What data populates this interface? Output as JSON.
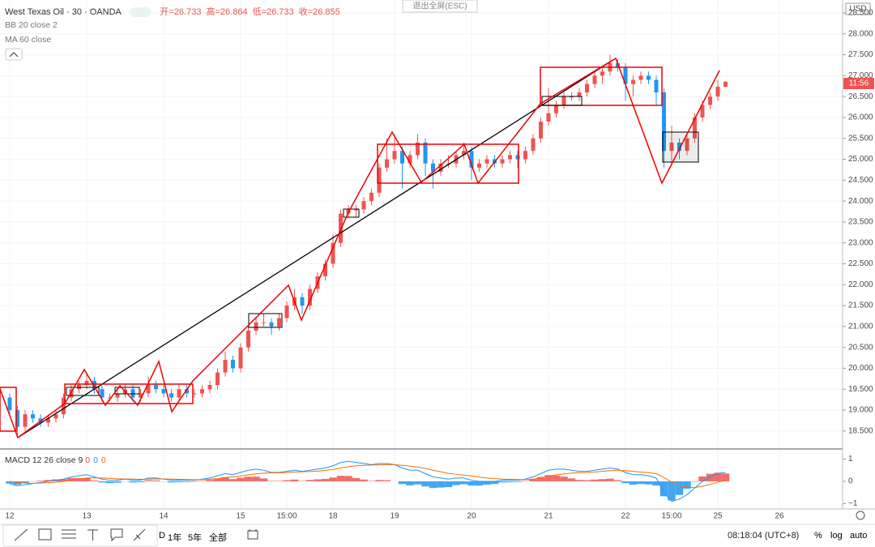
{
  "chart_data": [
    {
      "type": "candlestick",
      "title": "West Texas Oil · 30 · OANDA",
      "ohlc_labels": [
        "开=",
        "高=",
        "低=",
        "收="
      ],
      "indicators": [
        "BB 20 close 2",
        "MA 60 close"
      ],
      "currency": "USD",
      "countdown": "11:56",
      "up_color": "#ef5350",
      "down_color": "#2196f3",
      "grid": true,
      "categories": [
        "12",
        null,
        null,
        null,
        null,
        null,
        null,
        null,
        null,
        null,
        "13",
        null,
        null,
        null,
        null,
        null,
        null,
        null,
        null,
        null,
        "14",
        null,
        null,
        null,
        null,
        null,
        null,
        null,
        null,
        null,
        "15",
        null,
        null,
        null,
        null,
        null,
        "15:00",
        null,
        null,
        null,
        null,
        null,
        "18",
        null,
        null,
        null,
        null,
        null,
        null,
        null,
        "19",
        null,
        null,
        null,
        null,
        null,
        null,
        null,
        null,
        null,
        "20",
        null,
        null,
        null,
        null,
        null,
        null,
        null,
        null,
        null,
        "21",
        null,
        null,
        null,
        null,
        null,
        null,
        null,
        null,
        null,
        "22",
        null,
        null,
        null,
        null,
        null,
        "15:00",
        null,
        null,
        null,
        null,
        null,
        "25",
        null,
        null,
        null,
        null,
        null,
        null,
        null,
        "26"
      ],
      "ohlc": [
        [
          19.3,
          19.4,
          18.9,
          19.0
        ],
        [
          19.0,
          19.1,
          18.4,
          18.6
        ],
        [
          18.6,
          19.0,
          18.5,
          18.9
        ],
        [
          18.9,
          19.0,
          18.7,
          18.8
        ],
        [
          18.8,
          18.9,
          18.6,
          18.7
        ],
        [
          18.7,
          18.9,
          18.6,
          18.8
        ],
        [
          18.8,
          19.0,
          18.7,
          18.9
        ],
        [
          18.9,
          19.4,
          18.8,
          19.3
        ],
        [
          19.3,
          19.6,
          19.2,
          19.5
        ],
        [
          19.5,
          19.7,
          19.4,
          19.6
        ],
        [
          19.6,
          19.9,
          19.5,
          19.7
        ],
        [
          19.7,
          19.8,
          19.4,
          19.5
        ],
        [
          19.5,
          19.6,
          19.2,
          19.3
        ],
        [
          19.3,
          19.4,
          19.2,
          19.3
        ],
        [
          19.3,
          19.5,
          19.2,
          19.4
        ],
        [
          19.4,
          19.6,
          19.3,
          19.5
        ],
        [
          19.5,
          19.6,
          19.2,
          19.3
        ],
        [
          19.3,
          19.5,
          19.2,
          19.4
        ],
        [
          19.4,
          19.8,
          19.3,
          19.6
        ],
        [
          19.6,
          19.7,
          19.4,
          19.5
        ],
        [
          19.5,
          19.6,
          19.3,
          19.4
        ],
        [
          19.4,
          19.5,
          19.2,
          19.3
        ],
        [
          19.3,
          19.6,
          19.2,
          19.5
        ],
        [
          19.5,
          19.6,
          19.3,
          19.4
        ],
        [
          19.4,
          19.5,
          19.3,
          19.4
        ],
        [
          19.4,
          19.6,
          19.3,
          19.5
        ],
        [
          19.5,
          19.7,
          19.4,
          19.6
        ],
        [
          19.6,
          20.0,
          19.5,
          19.9
        ],
        [
          19.9,
          20.4,
          19.8,
          20.2
        ],
        [
          20.2,
          20.3,
          19.9,
          20.0
        ],
        [
          20.0,
          20.6,
          19.9,
          20.5
        ],
        [
          20.5,
          21.0,
          20.4,
          20.9
        ],
        [
          20.9,
          21.2,
          20.8,
          21.1
        ],
        [
          21.1,
          21.3,
          21.0,
          21.1
        ],
        [
          21.1,
          21.2,
          20.8,
          21.0
        ],
        [
          21.0,
          21.3,
          20.9,
          21.2
        ],
        [
          21.2,
          21.6,
          21.1,
          21.5
        ],
        [
          21.5,
          21.9,
          21.4,
          21.7
        ],
        [
          21.7,
          21.8,
          21.3,
          21.5
        ],
        [
          21.5,
          22.0,
          21.4,
          21.9
        ],
        [
          21.9,
          22.3,
          21.8,
          22.2
        ],
        [
          22.2,
          22.6,
          22.1,
          22.5
        ],
        [
          22.5,
          23.2,
          22.4,
          23.0
        ],
        [
          23.0,
          23.8,
          22.9,
          23.7
        ],
        [
          23.7,
          23.9,
          23.6,
          23.8
        ],
        [
          23.8,
          23.9,
          23.6,
          23.8
        ],
        [
          23.8,
          24.1,
          23.7,
          24.0
        ],
        [
          24.0,
          24.3,
          23.9,
          24.2
        ],
        [
          24.2,
          24.9,
          24.1,
          24.8
        ],
        [
          24.8,
          25.5,
          24.7,
          25.0
        ],
        [
          25.0,
          25.6,
          24.9,
          25.2
        ],
        [
          25.2,
          25.3,
          24.3,
          24.9
        ],
        [
          24.9,
          25.2,
          24.8,
          25.1
        ],
        [
          25.1,
          25.6,
          25.0,
          25.4
        ],
        [
          25.4,
          25.5,
          24.6,
          24.9
        ],
        [
          24.9,
          25.0,
          24.3,
          24.7
        ],
        [
          24.7,
          25.0,
          24.6,
          24.9
        ],
        [
          24.9,
          25.1,
          24.8,
          24.9
        ],
        [
          24.9,
          25.2,
          24.8,
          25.1
        ],
        [
          25.1,
          25.4,
          25.0,
          25.2
        ],
        [
          25.2,
          25.3,
          24.5,
          24.8
        ],
        [
          24.8,
          25.0,
          24.7,
          24.9
        ],
        [
          24.9,
          25.1,
          24.8,
          25.0
        ],
        [
          25.0,
          25.1,
          24.8,
          24.9
        ],
        [
          24.9,
          25.1,
          24.8,
          25.0
        ],
        [
          25.0,
          25.2,
          24.9,
          25.1
        ],
        [
          25.1,
          25.2,
          24.8,
          25.0
        ],
        [
          25.0,
          25.3,
          24.9,
          25.2
        ],
        [
          25.2,
          25.6,
          25.1,
          25.5
        ],
        [
          25.5,
          26.0,
          25.4,
          25.9
        ],
        [
          25.9,
          26.7,
          25.8,
          26.1
        ],
        [
          26.1,
          26.4,
          26.0,
          26.3
        ],
        [
          26.3,
          26.6,
          26.2,
          26.5
        ],
        [
          26.5,
          26.6,
          26.4,
          26.5
        ],
        [
          26.5,
          26.7,
          26.4,
          26.6
        ],
        [
          26.6,
          26.9,
          26.5,
          26.8
        ],
        [
          26.8,
          27.1,
          26.7,
          27.0
        ],
        [
          27.0,
          27.2,
          26.8,
          27.1
        ],
        [
          27.1,
          27.5,
          27.0,
          27.3
        ],
        [
          27.3,
          27.4,
          27.1,
          27.2
        ],
        [
          27.2,
          27.3,
          26.4,
          26.8
        ],
        [
          26.8,
          27.0,
          26.5,
          26.9
        ],
        [
          26.9,
          27.1,
          26.8,
          27.0
        ],
        [
          27.0,
          27.1,
          26.8,
          26.9
        ],
        [
          26.9,
          27.0,
          26.3,
          26.6
        ],
        [
          26.6,
          26.7,
          24.8,
          25.2
        ],
        [
          25.2,
          25.8,
          24.9,
          25.4
        ],
        [
          25.4,
          25.5,
          25.0,
          25.2
        ],
        [
          25.2,
          25.6,
          25.1,
          25.5
        ],
        [
          25.5,
          26.1,
          25.4,
          26.0
        ],
        [
          26.0,
          26.4,
          25.9,
          26.3
        ],
        [
          26.3,
          26.6,
          26.2,
          26.5
        ],
        [
          26.5,
          26.9,
          26.4,
          26.733
        ],
        [
          26.733,
          26.864,
          26.733,
          26.855
        ],
        null,
        null,
        null,
        null,
        null,
        null,
        null
      ],
      "ylim": [
        18.09,
        28.81
      ],
      "yticks": [
        {
          "value": 18.5,
          "label": "18.500"
        },
        {
          "value": 19,
          "label": "19.000"
        },
        {
          "value": 19.5,
          "label": "19.500"
        },
        {
          "value": 20,
          "label": "20.000"
        },
        {
          "value": 20.5,
          "label": "20.500"
        },
        {
          "value": 21,
          "label": "21.000"
        },
        {
          "value": 21.5,
          "label": "21.500"
        },
        {
          "value": 22,
          "label": "22.000"
        },
        {
          "value": 22.5,
          "label": "22.500"
        },
        {
          "value": 23,
          "label": "23.000"
        },
        {
          "value": 23.5,
          "label": "23.500"
        },
        {
          "value": 24,
          "label": "24.000"
        },
        {
          "value": 24.5,
          "label": "24.500"
        },
        {
          "value": 25,
          "label": "25.000"
        },
        {
          "value": 25.5,
          "label": "25.500"
        },
        {
          "value": 26,
          "label": "26.000"
        },
        {
          "value": 26.5,
          "label": "26.500"
        },
        {
          "value": 27,
          "label": "27.000"
        },
        {
          "value": 27.5,
          "label": "27.500"
        },
        {
          "value": 28,
          "label": "28.000"
        },
        {
          "value": 28.5,
          "label": "28.500"
        }
      ]
    },
    {
      "type": "macd",
      "title": "MACD 12 26 close 9",
      "legend_values": [
        0,
        0,
        0
      ],
      "ylim": [
        -1.24,
        1.42
      ],
      "yticks": [
        1,
        0,
        {
          "value": -1,
          "label": "−1"
        }
      ],
      "negative_color": "#2196f3",
      "series": [
        {
          "kind": "histogram",
          "color": "#ef5350",
          "values": [
            -0.1,
            -0.15,
            -0.07,
            -0.01,
            0.03,
            0.06,
            0.09,
            0.1,
            0.15,
            0.15,
            0.15,
            0.04,
            -0.05,
            -0.08,
            -0.06,
            -0.01,
            -0.05,
            -0.04,
            0.05,
            0.04,
            -0.01,
            -0.05,
            -0.04,
            -0.03,
            -0.02,
            0.02,
            0.06,
            0.13,
            0.18,
            0.1,
            0.16,
            0.21,
            0.21,
            0.13,
            0.02,
            0.02,
            0.05,
            0.08,
            0.02,
            0.06,
            0.09,
            0.11,
            0.17,
            0.25,
            0.24,
            0.15,
            0.08,
            0.02,
            0.06,
            0.05,
            0,
            -0.12,
            -0.18,
            -0.14,
            -0.23,
            -0.3,
            -0.28,
            -0.26,
            -0.17,
            -0.13,
            -0.19,
            -0.19,
            -0.15,
            -0.12,
            -0.05,
            -0.04,
            -0.03,
            0.02,
            0.1,
            0.2,
            0.28,
            0.26,
            0.21,
            0.13,
            0.06,
            0.05,
            0.08,
            0.1,
            0.12,
            0.05,
            -0.08,
            -0.15,
            -0.12,
            -0.14,
            -0.19,
            -0.67,
            -0.86,
            -0.61,
            -0.33,
            -0.02,
            0.22,
            0.34,
            0.39,
            0.35,
            null,
            null,
            null,
            null,
            null,
            null,
            null
          ]
        },
        {
          "kind": "line",
          "color": "#2196f3",
          "values": [
            -0.1,
            -0.2,
            -0.15,
            -0.1,
            -0.05,
            0,
            0.05,
            0.1,
            0.2,
            0.25,
            0.3,
            0.2,
            0.1,
            0.05,
            0.05,
            0.1,
            0.05,
            0.05,
            0.15,
            0.15,
            0.1,
            0.05,
            0.05,
            0.05,
            0.05,
            0.1,
            0.15,
            0.25,
            0.35,
            0.3,
            0.4,
            0.5,
            0.55,
            0.5,
            0.4,
            0.4,
            0.45,
            0.5,
            0.45,
            0.5,
            0.55,
            0.6,
            0.7,
            0.85,
            0.9,
            0.85,
            0.8,
            0.75,
            0.8,
            0.8,
            0.75,
            0.6,
            0.5,
            0.5,
            0.35,
            0.2,
            0.15,
            0.1,
            0.15,
            0.15,
            0.05,
            0,
            0,
            0,
            0.05,
            0.05,
            0.05,
            0.1,
            0.2,
            0.35,
            0.5,
            0.55,
            0.55,
            0.5,
            0.45,
            0.45,
            0.5,
            0.55,
            0.6,
            0.55,
            0.4,
            0.3,
            0.3,
            0.25,
            0.15,
            -0.5,
            -0.9,
            -0.8,
            -0.6,
            -0.3,
            0,
            0.2,
            0.35,
            0.4,
            null,
            null,
            null,
            null,
            null,
            null,
            null
          ]
        },
        {
          "kind": "line",
          "color": "#ff6d00",
          "values": [
            0,
            -0.05,
            -0.08,
            -0.09,
            -0.08,
            -0.06,
            -0.04,
            0,
            0.05,
            0.1,
            0.15,
            0.16,
            0.15,
            0.13,
            0.11,
            0.11,
            0.1,
            0.09,
            0.1,
            0.11,
            0.11,
            0.1,
            0.09,
            0.08,
            0.07,
            0.08,
            0.09,
            0.12,
            0.17,
            0.2,
            0.24,
            0.29,
            0.34,
            0.37,
            0.38,
            0.38,
            0.4,
            0.42,
            0.43,
            0.44,
            0.46,
            0.49,
            0.53,
            0.6,
            0.66,
            0.7,
            0.72,
            0.73,
            0.74,
            0.75,
            0.75,
            0.72,
            0.68,
            0.64,
            0.58,
            0.5,
            0.43,
            0.36,
            0.32,
            0.28,
            0.24,
            0.19,
            0.15,
            0.12,
            0.1,
            0.09,
            0.08,
            0.08,
            0.1,
            0.15,
            0.22,
            0.29,
            0.34,
            0.37,
            0.39,
            0.4,
            0.42,
            0.45,
            0.48,
            0.5,
            0.48,
            0.45,
            0.42,
            0.39,
            0.34,
            0.17,
            -0.04,
            -0.19,
            -0.27,
            -0.28,
            -0.22,
            -0.14,
            -0.04,
            0.05,
            null,
            null,
            null,
            null,
            null,
            null,
            null
          ]
        }
      ]
    }
  ],
  "ui": {
    "exit_fullscreen": "退出全屏(ESC)",
    "ranges": [
      "D",
      "1年",
      "5年",
      "全部"
    ],
    "clock": "08:18:04 (UTC+8)",
    "scale_buttons": [
      "%",
      "log",
      "auto"
    ]
  }
}
